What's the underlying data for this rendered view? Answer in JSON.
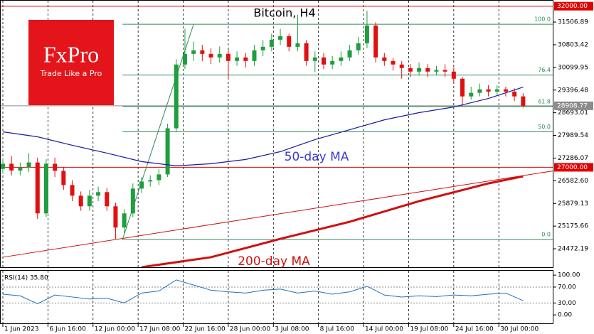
{
  "logo": {
    "name": "FxPro",
    "tagline": "Trade Like a Pro"
  },
  "chart_data": [
    {
      "type": "candlestick",
      "title": "Bitcoin, H4",
      "annotations": [
        "50-day MA",
        "200-day MA"
      ],
      "up_color": "#1e9e3e",
      "down_color": "#e01010",
      "x": [
        0,
        1,
        2,
        3,
        4,
        5,
        6,
        7,
        8,
        9,
        10,
        11,
        12,
        13,
        14,
        15,
        16,
        17,
        18,
        19,
        20,
        21,
        22,
        23,
        24,
        25,
        26,
        27,
        28,
        29,
        30,
        31,
        32,
        33,
        34,
        35,
        36,
        37,
        38,
        39,
        40,
        41,
        42,
        43,
        44,
        45,
        46,
        47,
        48,
        49,
        50,
        51,
        52,
        53,
        54,
        55,
        56,
        57,
        58,
        59,
        60
      ],
      "open": [
        26950,
        27110,
        26900,
        27000,
        27150,
        25570,
        27110,
        26890,
        26450,
        26120,
        25790,
        26120,
        26230,
        25790,
        25130,
        25570,
        26340,
        26560,
        26600,
        26780,
        28210,
        30190,
        30520,
        30630,
        30520,
        30410,
        30520,
        30300,
        30410,
        30300,
        30630,
        30740,
        30960,
        31070,
        30740,
        30850,
        30300,
        30410,
        30190,
        30300,
        30410,
        30630,
        30850,
        31400,
        30410,
        30300,
        30190,
        30080,
        29970,
        30080,
        29970,
        30020,
        29970,
        29750,
        29200,
        29310,
        29420,
        29350,
        29420,
        29350,
        29200
      ],
      "high": [
        27260,
        27350,
        27150,
        27440,
        27300,
        27250,
        27300,
        27000,
        26600,
        26250,
        26300,
        26400,
        26350,
        25900,
        25700,
        26500,
        26700,
        26750,
        26950,
        28350,
        30350,
        31300,
        30900,
        30800,
        30700,
        30750,
        30650,
        30600,
        30550,
        30800,
        30950,
        31150,
        31300,
        31150,
        31730,
        30950,
        30600,
        30550,
        30450,
        30600,
        30800,
        31050,
        31860,
        31500,
        30550,
        30400,
        30300,
        30200,
        30250,
        30200,
        30150,
        30200,
        30100,
        29800,
        29500,
        29600,
        29550,
        29550,
        29500,
        29450,
        29300
      ],
      "low": [
        26800,
        26750,
        26750,
        26850,
        25400,
        25450,
        26700,
        26300,
        25950,
        25650,
        25650,
        25950,
        25650,
        24780,
        24950,
        25450,
        26200,
        26400,
        26450,
        26700,
        28100,
        30050,
        30300,
        30300,
        30200,
        30250,
        29750,
        30150,
        30100,
        30150,
        30450,
        30600,
        30800,
        30600,
        30600,
        30150,
        29950,
        30050,
        30050,
        30150,
        30300,
        30500,
        30700,
        30250,
        30150,
        30000,
        29750,
        29800,
        29850,
        29800,
        29850,
        29800,
        29600,
        28900,
        29100,
        29200,
        29200,
        29250,
        29200,
        29050,
        28850
      ],
      "close": [
        27110,
        26900,
        27000,
        27150,
        25570,
        27110,
        26890,
        26450,
        26120,
        25790,
        26120,
        26230,
        25790,
        25130,
        25570,
        26340,
        26560,
        26600,
        26780,
        28210,
        30190,
        30520,
        30630,
        30520,
        30410,
        30520,
        30300,
        30410,
        30300,
        30630,
        30740,
        30960,
        31070,
        30740,
        30850,
        30300,
        30410,
        30190,
        30300,
        30410,
        30630,
        30850,
        31400,
        30410,
        30300,
        30190,
        30080,
        29970,
        30080,
        29970,
        30020,
        29970,
        29750,
        29200,
        29310,
        29420,
        29350,
        29420,
        29350,
        29200,
        28909
      ],
      "lines": [
        {
          "name": "50-day MA",
          "color": "#1a1aa0",
          "width": 1.2,
          "x": [
            0,
            4,
            8,
            12,
            16,
            20,
            24,
            28,
            32,
            36,
            40,
            44,
            48,
            52,
            56,
            60
          ],
          "values": [
            28101,
            27947,
            27683,
            27441,
            27178,
            27046,
            27112,
            27244,
            27486,
            27859,
            28167,
            28473,
            28697,
            28871,
            29136,
            29488
          ]
        },
        {
          "name": "200-day MA",
          "color": "#d01010",
          "width": 3,
          "x": [
            16,
            24,
            32,
            40,
            48,
            56,
            60
          ],
          "values": [
            23900,
            24210,
            24780,
            25310,
            25950,
            26500,
            26720
          ]
        },
        {
          "name": "trendline",
          "color": "#d01010",
          "width": 1,
          "x": [
            0,
            63.5
          ],
          "values": [
            24210,
            26890
          ]
        }
      ],
      "fib": {
        "color": "#2e8b57",
        "from_x": 13.8,
        "to_x": 22,
        "levels": [
          {
            "value": 31440,
            "label": "100.0"
          },
          {
            "value": 29864,
            "label": "76.4"
          },
          {
            "value": 28888,
            "label": "61.8"
          },
          {
            "value": 28100,
            "label": "50.0"
          },
          {
            "value": 24760,
            "label": "0.0"
          }
        ]
      },
      "levels": [
        {
          "value": 32000,
          "label": "32000.00",
          "color": "#e00000"
        },
        {
          "value": 27000,
          "label": "27000.00",
          "color": "#e00000"
        },
        {
          "value": 28908.77,
          "color": "#8c8c8c"
        }
      ],
      "xlim": [
        0,
        63.5
      ],
      "ylim": [
        23900,
        32170
      ],
      "xticks": [
        {
          "value": 0,
          "label": "1 Jun 2023"
        },
        {
          "value": 5.2,
          "label": "6 Jun 16:00"
        },
        {
          "value": 10.4,
          "label": "12 Jun 00:00"
        },
        {
          "value": 15.6,
          "label": "17 Jun 08:00"
        },
        {
          "value": 20.8,
          "label": "22 Jun 16:00"
        },
        {
          "value": 26,
          "label": "28 Jun 00:00"
        },
        {
          "value": 31.2,
          "label": "3 Jul 08:00"
        },
        {
          "value": 36.4,
          "label": "8 Jul 16:00"
        },
        {
          "value": 41.6,
          "label": "14 Jul 00:00"
        },
        {
          "value": 46.8,
          "label": "19 Jul 08:00"
        },
        {
          "value": 52,
          "label": "24 Jul 16:00"
        },
        {
          "value": 57.2,
          "label": "30 Jul 00:00"
        }
      ],
      "yticks": [
        31506.89,
        30803.42,
        30099.95,
        29396.48,
        28693.01,
        27989.54,
        27286.07,
        {
          "value": 26582.6,
          "label": "26582.60"
        },
        25879.13,
        25175.66,
        24472.19
      ]
    },
    {
      "type": "line",
      "title": "RSI(14) 35.80",
      "color": "#1f6fc0",
      "x": [
        0,
        2,
        4,
        6,
        8,
        10,
        12,
        14,
        16,
        18,
        20,
        22,
        24,
        26,
        28,
        30,
        32,
        34,
        36,
        38,
        40,
        42,
        44,
        46,
        48,
        50,
        52,
        54,
        56,
        58,
        60
      ],
      "values": [
        52,
        48,
        28,
        50,
        45,
        40,
        42,
        30,
        55,
        60,
        88,
        75,
        62,
        58,
        55,
        62,
        65,
        55,
        60,
        52,
        58,
        72,
        50,
        45,
        48,
        46,
        50,
        48,
        52,
        55,
        35.8
      ],
      "ylim": [
        -23,
        111
      ],
      "yticks": [
        {
          "value": 100,
          "label": "100.00"
        },
        {
          "value": 70,
          "label": "70.00"
        },
        {
          "value": 30,
          "label": "30.00"
        },
        {
          "value": 0,
          "label": "0.00"
        }
      ],
      "ref_lines": [
        70,
        30
      ]
    }
  ]
}
